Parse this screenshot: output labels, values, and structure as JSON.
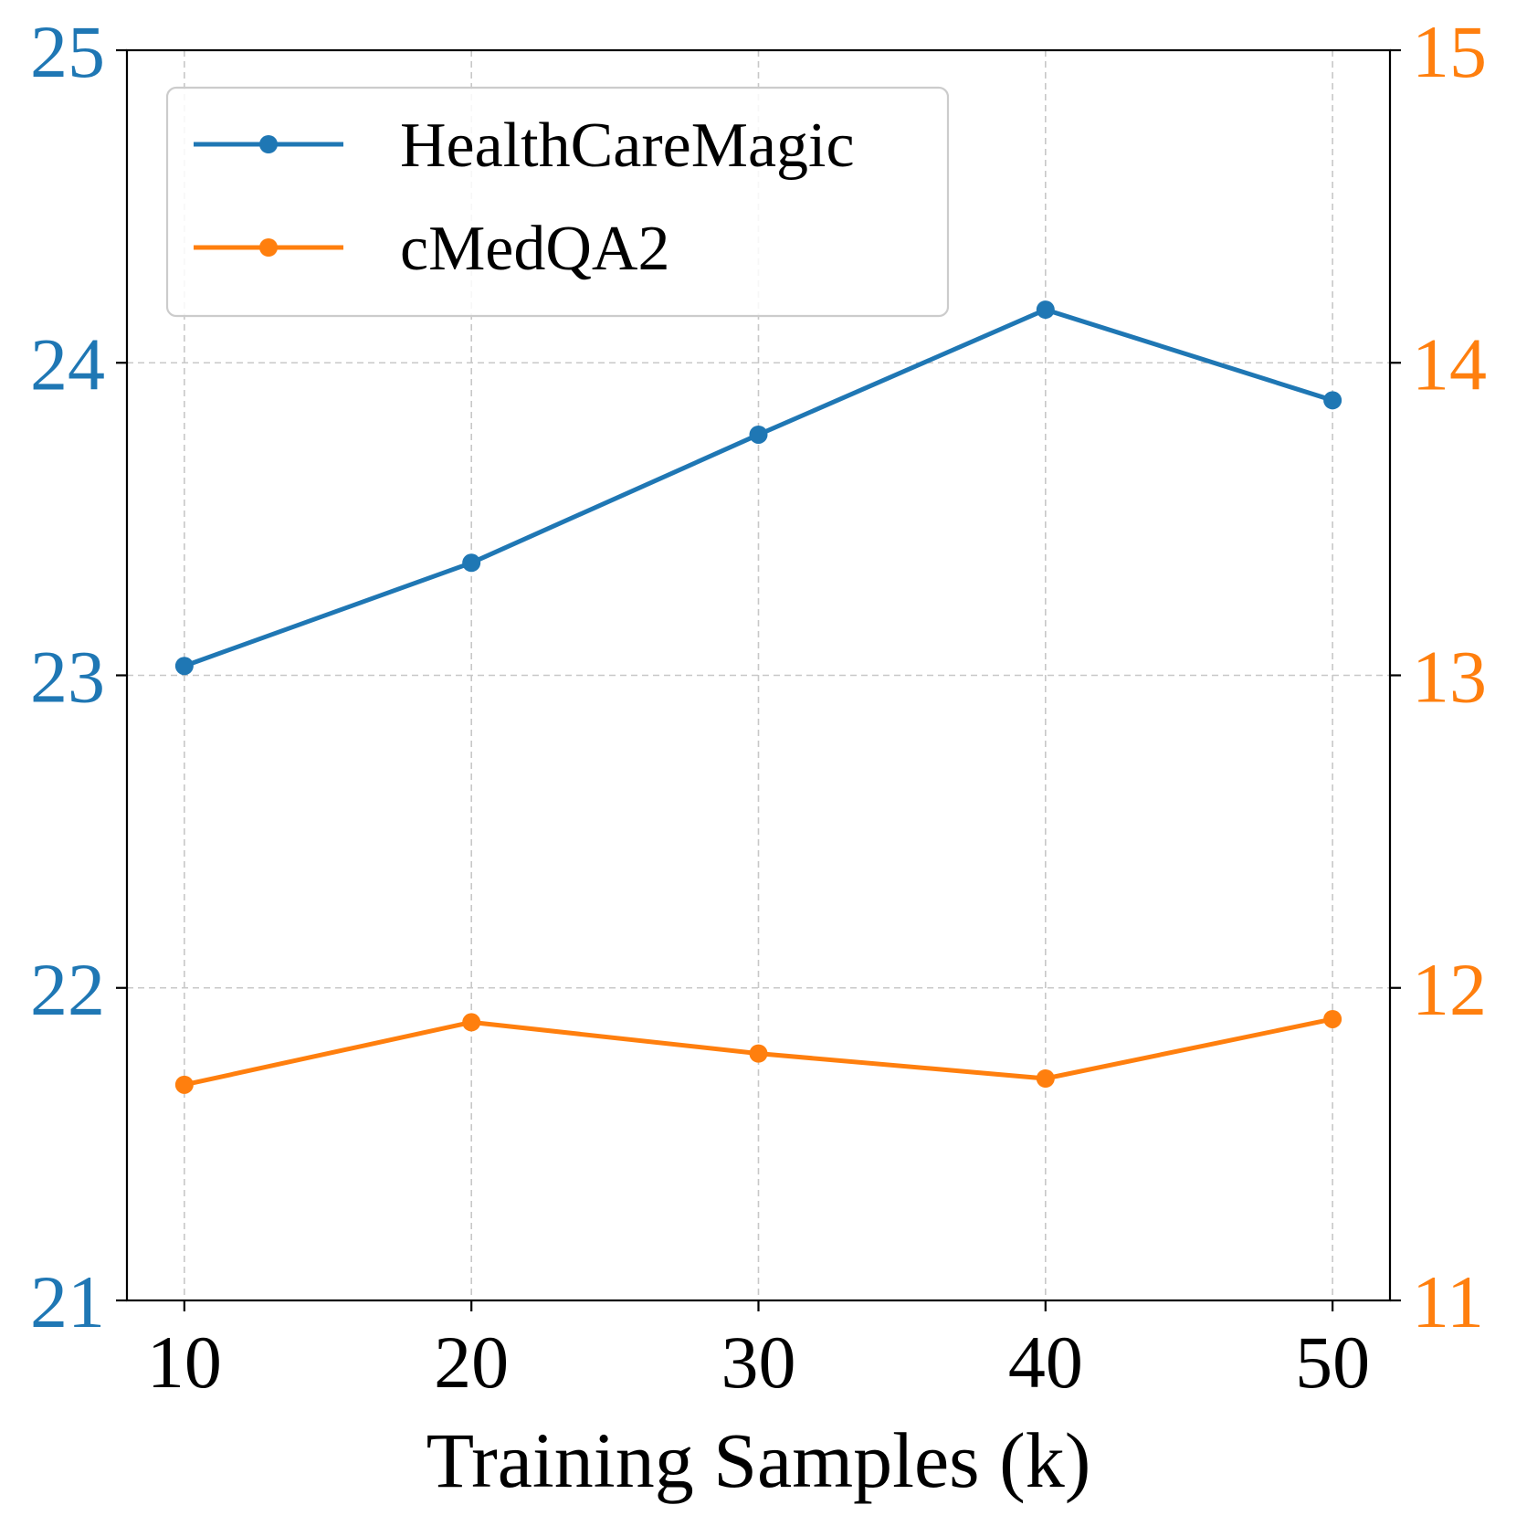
{
  "chart_data": {
    "type": "line",
    "title": "",
    "xlabel": "Training Samples (k)",
    "ylabel_left": "",
    "ylabel_right": "",
    "x": [
      10,
      20,
      30,
      40,
      50
    ],
    "xlim": [
      8,
      52
    ],
    "ylim_left": [
      21,
      25
    ],
    "ylim_right": [
      11,
      15
    ],
    "xticks": [
      "10",
      "20",
      "30",
      "40",
      "50"
    ],
    "yticks_left": [
      "21",
      "22",
      "23",
      "24",
      "25"
    ],
    "yticks_right": [
      "11",
      "12",
      "13",
      "14",
      "15"
    ],
    "grid": true,
    "legend_position": "top-left",
    "series": [
      {
        "name": "HealthCareMagic",
        "axis": "left",
        "color": "#1f77b4",
        "values": [
          23.03,
          23.36,
          23.77,
          24.17,
          23.88
        ]
      },
      {
        "name": "cMedQA2",
        "axis": "right",
        "color": "#ff7f0e",
        "values": [
          11.69,
          11.89,
          11.79,
          11.71,
          11.9
        ]
      }
    ],
    "left_axis_color": "#1f77b4",
    "right_axis_color": "#ff7f0e"
  }
}
